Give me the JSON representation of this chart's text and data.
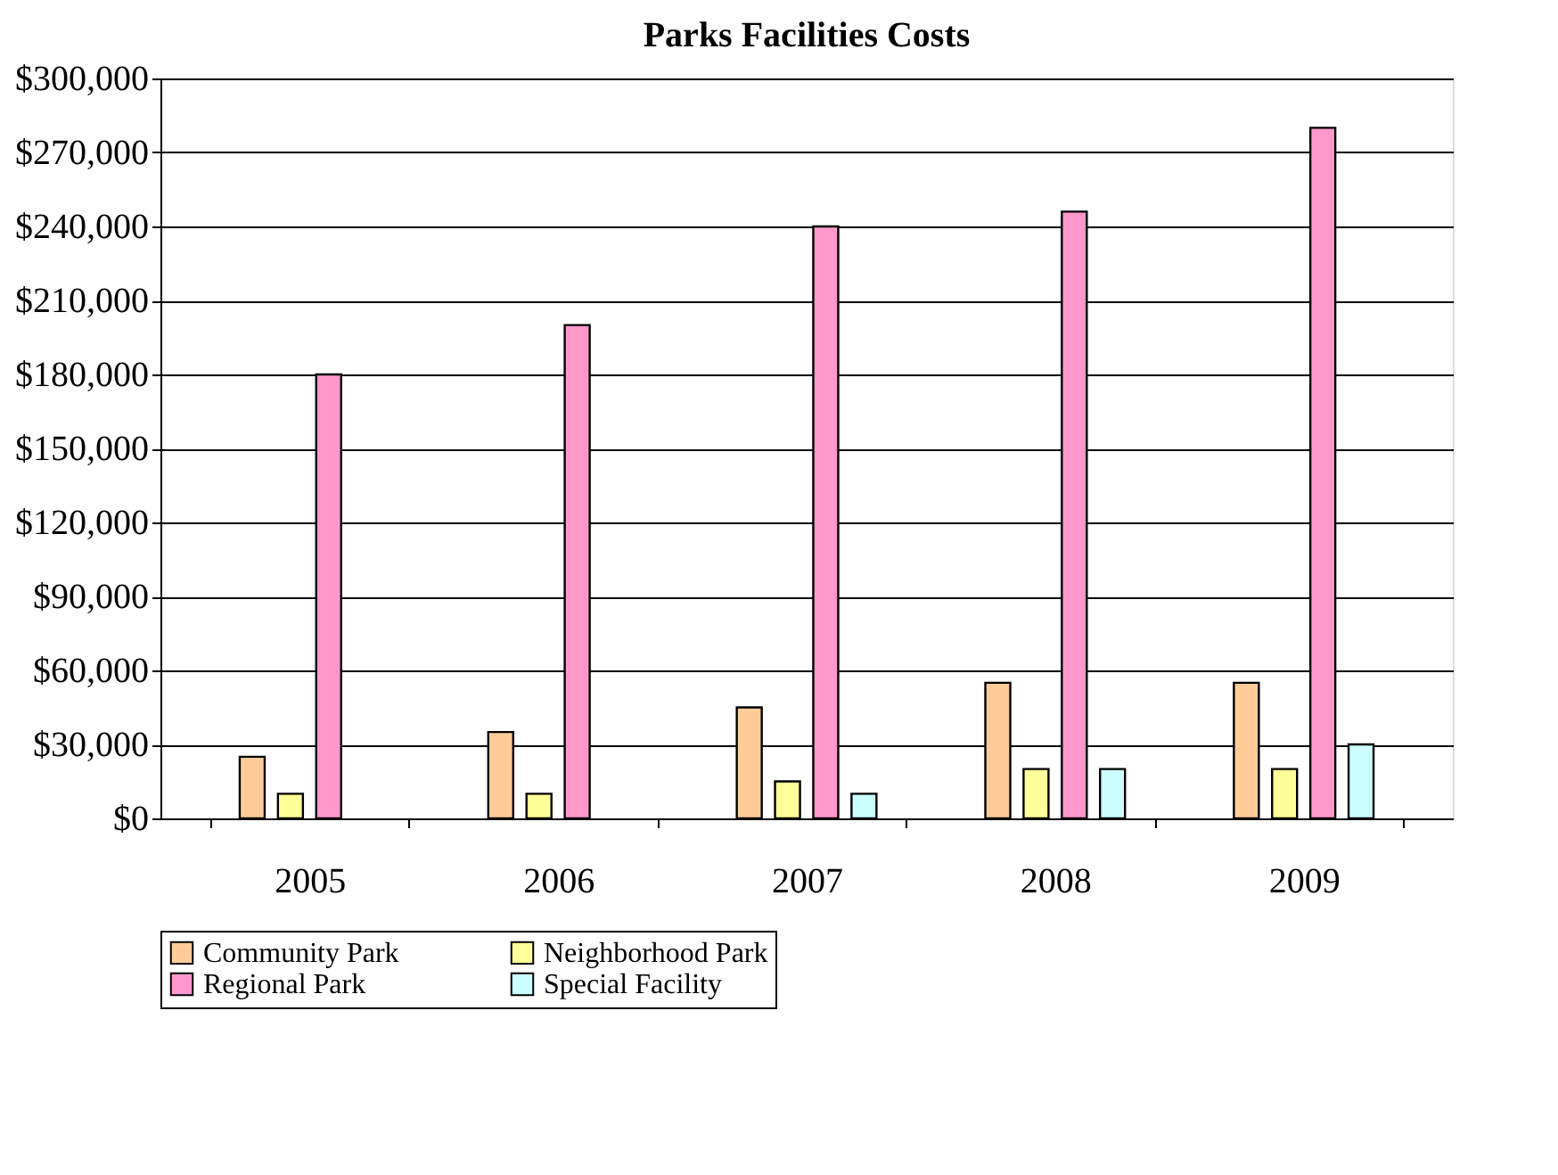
{
  "chart_data": {
    "type": "bar",
    "title": "Parks Facilities Costs",
    "categories": [
      "2005",
      "2006",
      "2007",
      "2008",
      "2009"
    ],
    "series": [
      {
        "name": "Community Park",
        "color": "#ffcc99",
        "values": [
          25000,
          35000,
          45000,
          55000,
          55000
        ]
      },
      {
        "name": "Neighborhood Park",
        "color": "#ffff99",
        "values": [
          10000,
          10000,
          15000,
          20000,
          20000
        ]
      },
      {
        "name": "Regional Park",
        "color": "#ff99cc",
        "values": [
          180000,
          200000,
          240000,
          246000,
          280000
        ]
      },
      {
        "name": "Special Facility",
        "color": "#ccffff",
        "values": [
          null,
          null,
          10000,
          20000,
          30000
        ]
      }
    ],
    "ylim": [
      0,
      300000
    ],
    "yticks": [
      {
        "value": 0,
        "label": "$0"
      },
      {
        "value": 30000,
        "label": "$30,000"
      },
      {
        "value": 60000,
        "label": "$60,000"
      },
      {
        "value": 90000,
        "label": "$90,000"
      },
      {
        "value": 120000,
        "label": "$120,000"
      },
      {
        "value": 150000,
        "label": "$150,000"
      },
      {
        "value": 180000,
        "label": "$180,000"
      },
      {
        "value": 210000,
        "label": "$210,000"
      },
      {
        "value": 240000,
        "label": "$240,000"
      },
      {
        "value": 270000,
        "label": "$270,000"
      },
      {
        "value": 300000,
        "label": "$300,000"
      }
    ],
    "grid": "y",
    "legend": "bottom"
  }
}
